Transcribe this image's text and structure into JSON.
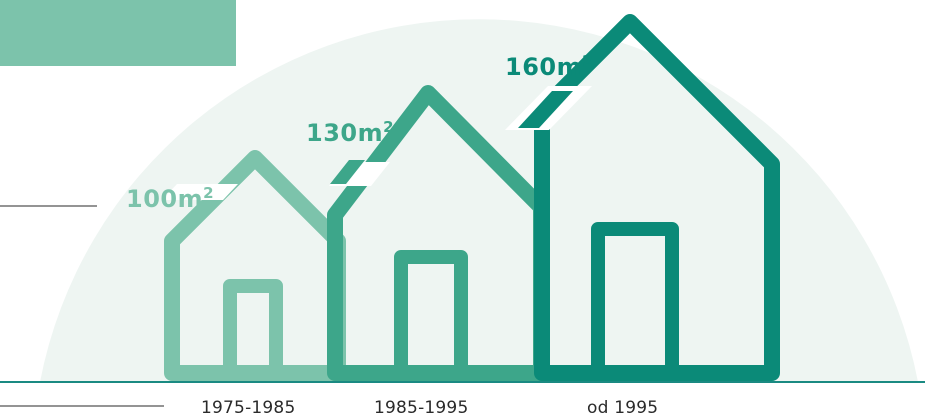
{
  "houses": [
    {
      "period": "1975-1985",
      "area_value": "100m",
      "area_unit_exp": "2",
      "color": "#7cc3ab"
    },
    {
      "period": "1985-1995",
      "area_value": "130m",
      "area_unit_exp": "2",
      "color": "#3da68a"
    },
    {
      "period": "od 1995",
      "area_value": "160m",
      "area_unit_exp": "2",
      "color": "#0b8a78"
    }
  ],
  "colors": {
    "background_arc": "#eef5f2",
    "corner_panel": "#7cc3ab",
    "ground_line": "#1a8a82",
    "leader_lines": "#555555",
    "label_text": "#2a2a2a"
  }
}
